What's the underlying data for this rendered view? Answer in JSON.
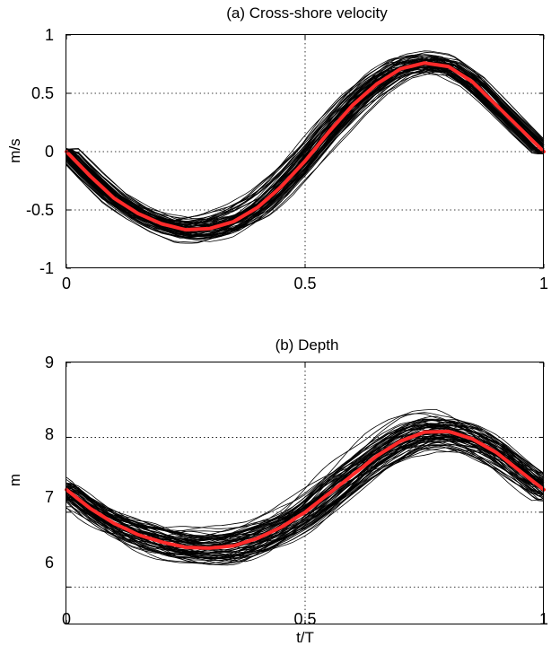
{
  "colors": {
    "ensemble": "#000000",
    "mean": "#ff2a2a"
  },
  "chart_data": [
    {
      "type": "line",
      "title": "(a) Cross-shore velocity",
      "xlabel": "",
      "ylabel": "m/s",
      "xlim": [
        0,
        1
      ],
      "ylim": [
        -1,
        1
      ],
      "xticks": [
        0,
        0.5,
        1
      ],
      "xtick_labels": [
        "0",
        "0.5",
        "1"
      ],
      "yticks": [
        -1,
        -0.5,
        0,
        0.5,
        1
      ],
      "ytick_labels": [
        "-1",
        "-0.5",
        "0",
        "0.5",
        "1"
      ],
      "grid": true,
      "mean_series": {
        "x": [
          0,
          0.05,
          0.1,
          0.15,
          0.2,
          0.25,
          0.3,
          0.35,
          0.4,
          0.45,
          0.5,
          0.55,
          0.6,
          0.65,
          0.7,
          0.75,
          0.8,
          0.85,
          0.9,
          0.95,
          1
        ],
        "values": [
          0,
          -0.21,
          -0.4,
          -0.53,
          -0.62,
          -0.67,
          -0.66,
          -0.6,
          -0.48,
          -0.3,
          -0.08,
          0.17,
          0.4,
          0.58,
          0.71,
          0.76,
          0.73,
          0.6,
          0.4,
          0.2,
          0
        ]
      },
      "ensemble": {
        "count": 70,
        "spread_y": 0.1
      }
    },
    {
      "type": "line",
      "title": "(b) Depth",
      "xlabel": "t/T",
      "ylabel": "m",
      "xlim": [
        0,
        1
      ],
      "ylim": [
        5.5,
        9
      ],
      "xticks": [
        0,
        0.5,
        1
      ],
      "xtick_labels": [
        "0",
        "0.5",
        "1"
      ],
      "yticks": [
        6,
        7,
        8,
        9
      ],
      "ytick_labels": [
        "6",
        "7",
        "8",
        "9"
      ],
      "grid": true,
      "mean_series": {
        "x": [
          0,
          0.05,
          0.1,
          0.15,
          0.2,
          0.25,
          0.3,
          0.35,
          0.4,
          0.45,
          0.5,
          0.55,
          0.6,
          0.65,
          0.7,
          0.75,
          0.8,
          0.85,
          0.9,
          0.95,
          1
        ],
        "values": [
          7.3,
          7.05,
          6.85,
          6.7,
          6.6,
          6.53,
          6.52,
          6.55,
          6.65,
          6.8,
          7.0,
          7.25,
          7.5,
          7.75,
          7.95,
          8.07,
          8.08,
          7.98,
          7.8,
          7.55,
          7.3
        ]
      },
      "ensemble": {
        "count": 70,
        "spread_y": 0.22
      }
    }
  ]
}
